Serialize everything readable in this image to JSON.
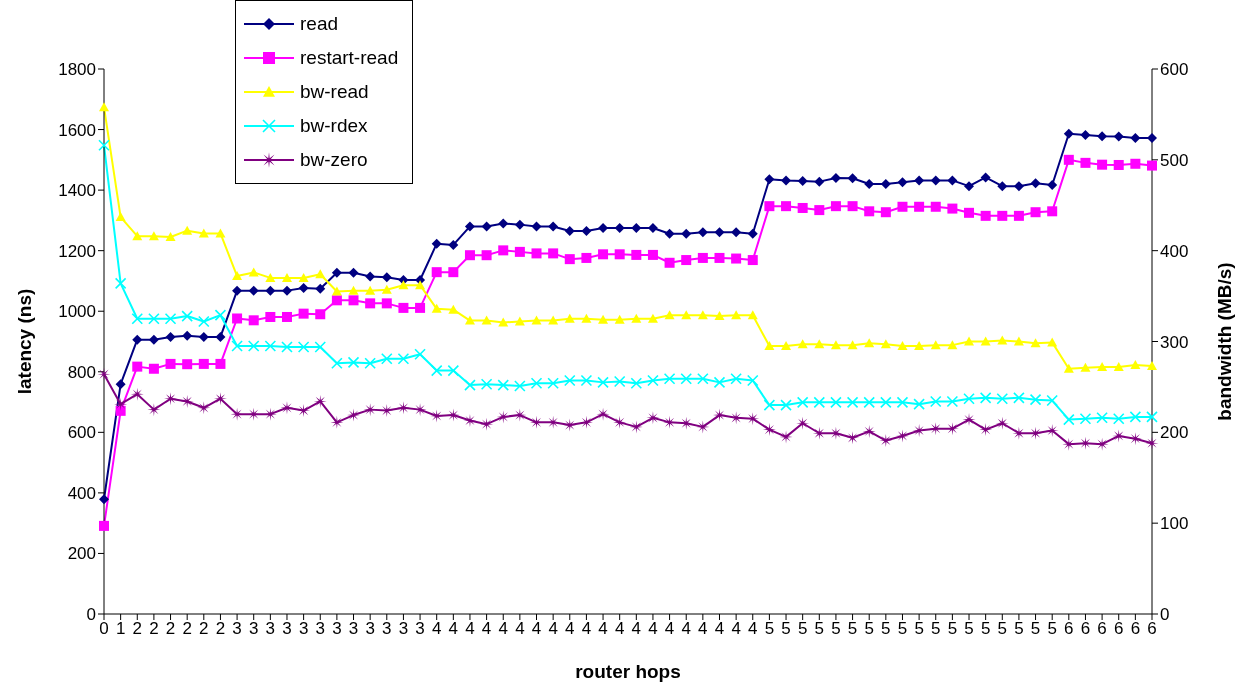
{
  "chart_data": {
    "type": "line",
    "xlabel": "router hops",
    "ylabel": "latency (ns)",
    "y2label": "bandwidth (MB/s)",
    "categories": [
      "0",
      "1",
      "2",
      "2",
      "2",
      "2",
      "2",
      "2",
      "3",
      "3",
      "3",
      "3",
      "3",
      "3",
      "3",
      "3",
      "3",
      "3",
      "3",
      "3",
      "4",
      "4",
      "4",
      "4",
      "4",
      "4",
      "4",
      "4",
      "4",
      "4",
      "4",
      "4",
      "4",
      "4",
      "4",
      "4",
      "4",
      "4",
      "4",
      "4",
      "5",
      "5",
      "5",
      "5",
      "5",
      "5",
      "5",
      "5",
      "5",
      "5",
      "5",
      "5",
      "5",
      "5",
      "5",
      "5",
      "5",
      "5",
      "6",
      "6",
      "6",
      "6",
      "6",
      "6"
    ],
    "ylim": [
      0,
      1800
    ],
    "yticks": [
      0,
      200,
      400,
      600,
      800,
      1000,
      1200,
      1400,
      1600,
      1800
    ],
    "y2lim": [
      0,
      600
    ],
    "y2ticks": [
      0,
      100,
      200,
      300,
      400,
      500,
      600
    ],
    "grid": false,
    "legend": "top left",
    "line_style": "solid",
    "series": [
      {
        "name": "read",
        "color": "#000080",
        "marker": "diamond",
        "values": [
          379,
          759,
          906,
          906,
          915,
          919,
          915,
          915,
          1068,
          1068,
          1068,
          1068,
          1077,
          1074,
          1127,
          1127,
          1115,
          1112,
          1103,
          1103,
          1223,
          1219,
          1280,
          1280,
          1290,
          1286,
          1280,
          1280,
          1265,
          1265,
          1275,
          1275,
          1275,
          1275,
          1256,
          1256,
          1261,
          1261,
          1261,
          1256,
          1436,
          1432,
          1430,
          1428,
          1440,
          1439,
          1420,
          1420,
          1426,
          1432,
          1432,
          1432,
          1413,
          1442,
          1413,
          1413,
          1423,
          1417,
          1586,
          1582,
          1578,
          1577,
          1572,
          1572
        ]
      },
      {
        "name": "restart-read",
        "color": "#ff00ff",
        "marker": "square",
        "values": [
          291,
          671,
          817,
          810,
          826,
          825,
          826,
          826,
          976,
          970,
          981,
          981,
          992,
          990,
          1036,
          1036,
          1026,
          1026,
          1011,
          1011,
          1129,
          1129,
          1185,
          1185,
          1201,
          1196,
          1191,
          1191,
          1172,
          1176,
          1188,
          1188,
          1186,
          1186,
          1160,
          1169,
          1176,
          1176,
          1174,
          1169,
          1347,
          1347,
          1341,
          1334,
          1347,
          1347,
          1330,
          1327,
          1345,
          1345,
          1345,
          1339,
          1325,
          1315,
          1315,
          1315,
          1327,
          1330,
          1500,
          1490,
          1484,
          1483,
          1487,
          1481
        ]
      },
      {
        "name": "bw-read",
        "color": "#ffff00",
        "marker": "triangle",
        "axis": "y2",
        "values": [
          558,
          437,
          416,
          416,
          415,
          422,
          419,
          419,
          372,
          376,
          370,
          370,
          370,
          374,
          355,
          356,
          356,
          357,
          362,
          362,
          336,
          335,
          323,
          323,
          321,
          322,
          323,
          323,
          325,
          325,
          324,
          324,
          325,
          325,
          329,
          329,
          329,
          328,
          329,
          329,
          295,
          295,
          297,
          297,
          296,
          296,
          298,
          297,
          295,
          295,
          296,
          296,
          300,
          300,
          301,
          300,
          298,
          299,
          270,
          271,
          272,
          272,
          274,
          273
        ]
      },
      {
        "name": "bw-rdex",
        "color": "#00ffff",
        "marker": "cross",
        "axis": "y2",
        "values": [
          516,
          364,
          325,
          325,
          325,
          328,
          322,
          329,
          295,
          295,
          295,
          294,
          294,
          294,
          276,
          277,
          276,
          281,
          281,
          286,
          268,
          268,
          252,
          253,
          252,
          251,
          254,
          254,
          257,
          257,
          255,
          256,
          254,
          257,
          259,
          259,
          259,
          255,
          259,
          257,
          230,
          230,
          233,
          233,
          233,
          233,
          233,
          233,
          233,
          231,
          234,
          234,
          237,
          238,
          237,
          238,
          236,
          235,
          214,
          215,
          216,
          215,
          217,
          217
        ]
      },
      {
        "name": "bw-zero",
        "color": "#800080",
        "marker": "star",
        "axis": "y2",
        "values": [
          264,
          231,
          242,
          225,
          237,
          234,
          227,
          237,
          220,
          220,
          220,
          227,
          224,
          234,
          211,
          219,
          225,
          224,
          227,
          225,
          218,
          219,
          213,
          209,
          217,
          219,
          211,
          211,
          208,
          211,
          220,
          211,
          206,
          216,
          211,
          210,
          206,
          219,
          216,
          215,
          203,
          195,
          210,
          199,
          199,
          194,
          201,
          191,
          196,
          202,
          204,
          204,
          214,
          203,
          210,
          199,
          199,
          202,
          187,
          188,
          187,
          196,
          193,
          188
        ]
      }
    ]
  }
}
